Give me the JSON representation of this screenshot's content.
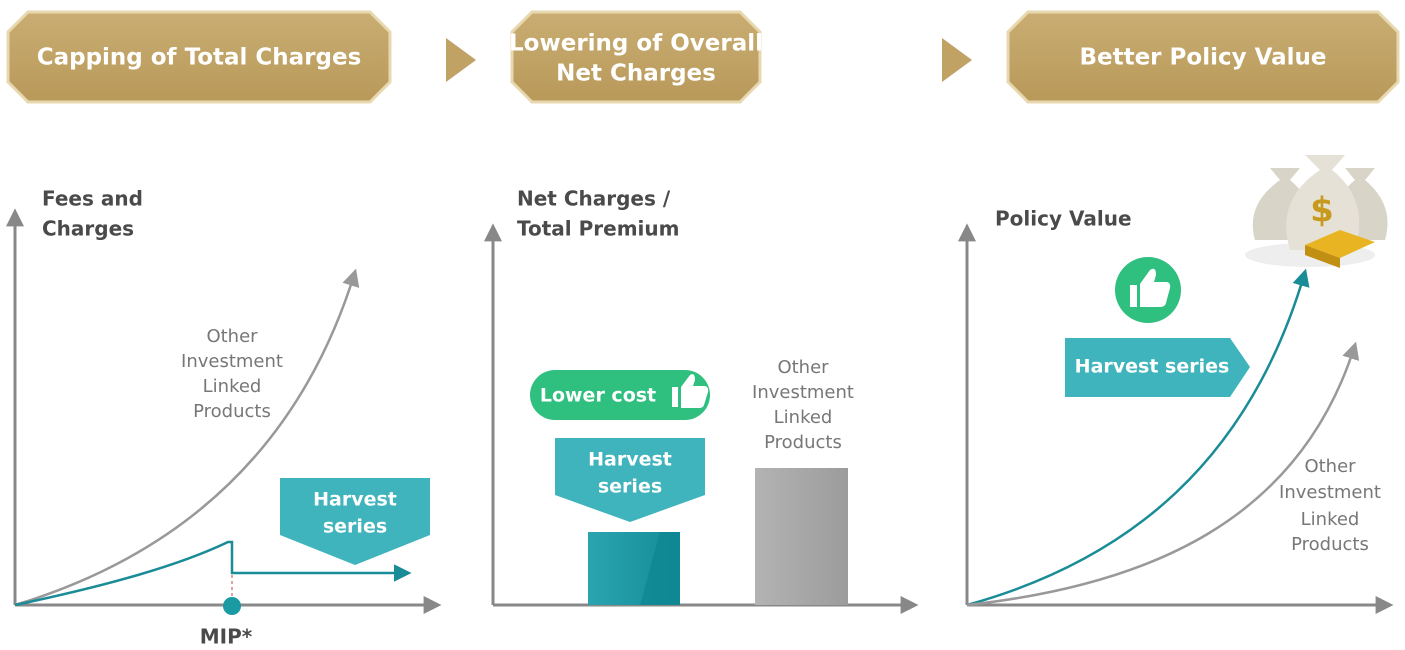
{
  "header": {
    "steps": [
      {
        "lines": [
          "Capping of Total Charges"
        ]
      },
      {
        "lines": [
          "Lowering of Overall",
          "Net Charges"
        ]
      },
      {
        "lines": [
          "Better Policy Value"
        ]
      }
    ]
  },
  "panels": [
    {
      "axis_label": [
        "Fees and",
        "Charges"
      ],
      "other_label": [
        "Other",
        "Investment",
        "Linked",
        "Products"
      ],
      "harvest_label": [
        "Harvest",
        "series"
      ],
      "marker_label": "MIP*"
    },
    {
      "axis_label": [
        "Net Charges /",
        "Total Premium"
      ],
      "other_label": [
        "Other",
        "Investment",
        "Linked",
        "Products"
      ],
      "harvest_label": [
        "Harvest",
        "series"
      ],
      "badge": "Lower cost"
    },
    {
      "axis_label": [
        "Policy Value"
      ],
      "other_label": [
        "Other",
        "Investment",
        "Linked",
        "Products"
      ],
      "harvest_label": [
        "Harvest series"
      ]
    }
  ]
}
